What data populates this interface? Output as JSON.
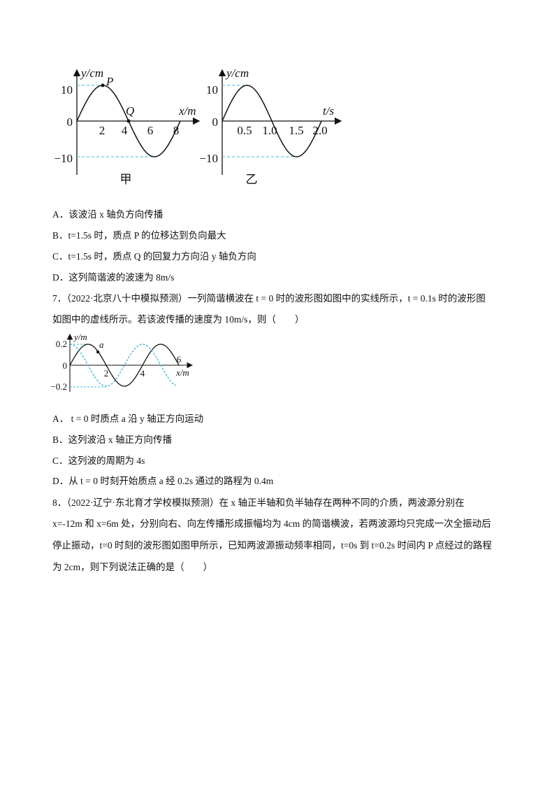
{
  "figure1": {
    "left": {
      "y_label": "y/cm",
      "x_label": "x/m",
      "point_p": "P",
      "point_q": "Q",
      "yticks": [
        "10",
        "0",
        "−10"
      ],
      "xticks": [
        "2",
        "4",
        "6",
        "8"
      ],
      "caption": "甲"
    },
    "right": {
      "y_label": "y/cm",
      "x_label": "t/s",
      "yticks": [
        "10",
        "0",
        "−10"
      ],
      "xticks": [
        "0.5",
        "1.0",
        "1.5",
        "2.0"
      ],
      "caption": "乙"
    }
  },
  "q6_options": [
    "A．该波沿 x 轴负方向传播",
    "B．t=1.5s 时，质点 P 的位移达到负向最大",
    "C．t=1.5s 时，质点 Q 的回复力方向沿 y 轴负方向",
    "D．这列简谐波的波速为 8m/s"
  ],
  "q7": {
    "stem_line1": "7．（2022·北京八十中模拟预测）一列简谐横波在 t = 0 时的波形图如图中的实线所示，t = 0.1s 时的波形图",
    "stem_line2": "如图中的虚线所示。若该波传播的速度为 10m/s，则（　　）",
    "figure": {
      "y_label": "y/m",
      "x_label": "x/m",
      "point_a": "a",
      "yticks": [
        "0.2",
        "0",
        "−0.2"
      ],
      "xticks": [
        "2",
        "4",
        "6"
      ]
    },
    "options": [
      "A． t = 0 时质点 a 沿 y 轴正方向运动",
      "B．这列波沿 x 轴正方向传播",
      "C．这列波的周期为 4s",
      "D．从 t = 0 时刻开始质点 a 经 0.2s 通过的路程为 0.4m"
    ]
  },
  "q8": {
    "lines": [
      "8．（2022·辽宁·东北育才学校模拟预测）在 x 轴正半轴和负半轴存在两种不同的介质，两波源分别在",
      "x=-12m 和 x=6m 处，分别向右、向左传播形成振幅均为 4cm 的简谐横波，若两波源均只完成一次全振动后",
      "停止振动，t=0 时刻的波形图如图甲所示，已知两波源振动频率相同，t=0s 到 t=0.2s 时间内 P 点经过的路程",
      "为 2cm，则下列说法正确的是（　　）"
    ]
  }
}
